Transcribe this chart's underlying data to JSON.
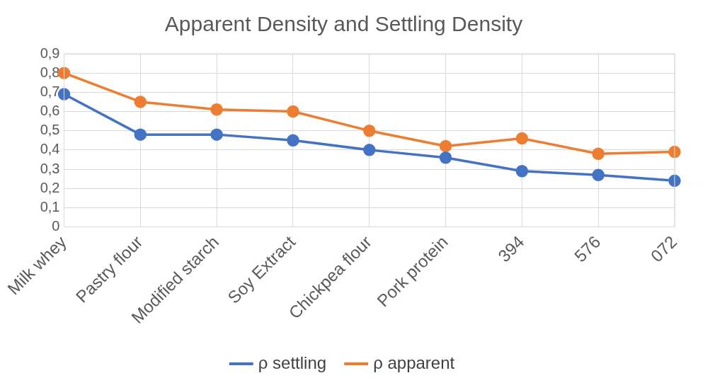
{
  "chart_data": {
    "type": "line",
    "title": "Apparent Density and Settling Density",
    "categories": [
      "Milk whey",
      "Pastry flour",
      "Modified starch",
      "Soy Extract",
      "Chickpea flour",
      "Pork protein",
      "394",
      "576",
      "072"
    ],
    "series": [
      {
        "name": "ρ settling",
        "color": "#4472c4",
        "values": [
          0.69,
          0.48,
          0.48,
          0.45,
          0.4,
          0.36,
          0.29,
          0.27,
          0.24
        ]
      },
      {
        "name": "ρ apparent",
        "color": "#ed7d31",
        "values": [
          0.8,
          0.65,
          0.61,
          0.6,
          0.5,
          0.42,
          0.46,
          0.38,
          0.39
        ]
      }
    ],
    "ylim": [
      0,
      0.9
    ],
    "yticks": [
      0,
      {
        "value": 0.1,
        "label": "0,1"
      },
      {
        "value": 0.2,
        "label": "0,2"
      },
      {
        "value": 0.3,
        "label": "0,3"
      },
      {
        "value": 0.4,
        "label": "0,4"
      },
      {
        "value": 0.5,
        "label": "0,5"
      },
      {
        "value": 0.6,
        "label": "0,6"
      },
      {
        "value": 0.7,
        "label": "0,7"
      },
      {
        "value": 0.8,
        "label": "0,8"
      },
      {
        "value": 0.9,
        "label": "0,9"
      }
    ],
    "grid": true,
    "legend": "bottom",
    "marker": "circle",
    "line_style": "solid"
  }
}
